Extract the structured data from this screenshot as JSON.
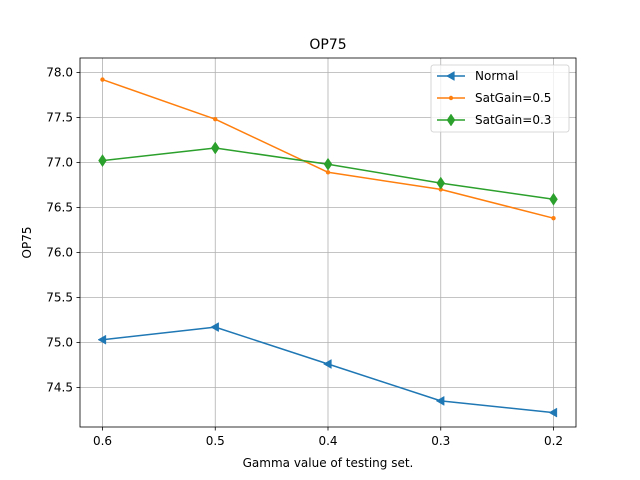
{
  "chart_data": {
    "type": "line",
    "title": "OP75",
    "xlabel": "Gamma value of testing set.",
    "ylabel": "OP75",
    "categories": [
      "0.6",
      "0.5",
      "0.4",
      "0.3",
      "0.2"
    ],
    "ylim": [
      74.06,
      78.16
    ],
    "yticks": [
      74.5,
      75.0,
      75.5,
      76.0,
      76.5,
      77.0,
      77.5,
      78.0
    ],
    "ytick_labels": [
      "74.5",
      "75.0",
      "75.5",
      "76.0",
      "76.5",
      "77.0",
      "77.5",
      "78.0"
    ],
    "grid": true,
    "legend_position": "top-right",
    "series": [
      {
        "name": "Normal",
        "color": "#1f77b4",
        "marker": "triangle-left",
        "values": [
          75.03,
          75.17,
          74.76,
          74.35,
          74.22
        ]
      },
      {
        "name": "SatGain=0.5",
        "color": "#ff7f0e",
        "marker": "dot",
        "values": [
          77.92,
          77.48,
          76.89,
          76.7,
          76.38
        ]
      },
      {
        "name": "SatGain=0.3",
        "color": "#2ca02c",
        "marker": "diamond",
        "values": [
          77.02,
          77.16,
          76.98,
          76.77,
          76.59
        ]
      }
    ]
  }
}
